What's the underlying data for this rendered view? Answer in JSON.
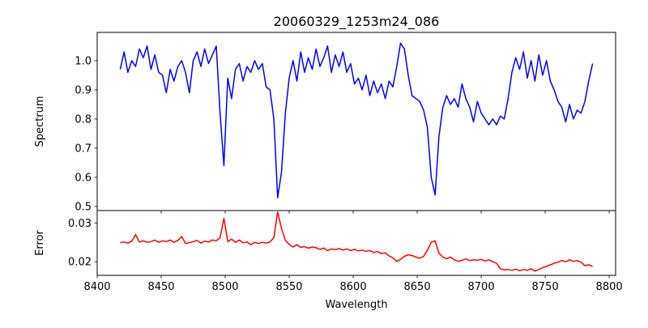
{
  "chart_data": [
    {
      "type": "line",
      "title": "20060329_1253m24_086",
      "xlabel": "",
      "ylabel": "Spectrum",
      "xlim": [
        8400,
        8805
      ],
      "ylim": [
        0.486,
        1.097
      ],
      "yticks": [
        0.5,
        0.6,
        0.7,
        0.8,
        0.9,
        1.0
      ],
      "ytick_labels": [
        "0.5",
        "0.6",
        "0.7",
        "0.8",
        "0.9",
        "1.0"
      ],
      "grid": false,
      "color": "#0000ff",
      "x_start": 8418,
      "x_step": 3,
      "values": [
        0.97,
        1.03,
        0.96,
        1.0,
        0.98,
        1.04,
        1.01,
        1.05,
        0.97,
        1.02,
        0.96,
        0.95,
        0.89,
        0.97,
        0.93,
        0.98,
        1.0,
        0.96,
        0.89,
        1.0,
        1.03,
        0.98,
        1.04,
        0.99,
        1.02,
        1.05,
        0.82,
        0.64,
        0.94,
        0.87,
        0.97,
        0.99,
        0.93,
        0.98,
        0.96,
        1.0,
        0.97,
        0.99,
        0.91,
        0.9,
        0.8,
        0.53,
        0.62,
        0.82,
        0.94,
        1.0,
        0.93,
        1.03,
        0.96,
        1.01,
        0.97,
        1.04,
        0.98,
        1.01,
        1.05,
        0.96,
        1.02,
        0.98,
        1.03,
        0.96,
        0.99,
        0.92,
        0.94,
        0.9,
        0.95,
        0.88,
        0.93,
        0.89,
        0.92,
        0.87,
        0.93,
        0.91,
        0.98,
        1.06,
        1.04,
        0.95,
        0.88,
        0.87,
        0.86,
        0.83,
        0.77,
        0.6,
        0.54,
        0.74,
        0.84,
        0.88,
        0.85,
        0.87,
        0.84,
        0.92,
        0.87,
        0.84,
        0.79,
        0.86,
        0.82,
        0.8,
        0.78,
        0.8,
        0.78,
        0.81,
        0.8,
        0.87,
        0.96,
        1.01,
        0.97,
        1.03,
        0.94,
        1.0,
        0.93,
        1.02,
        0.95,
        1.0,
        0.93,
        0.9,
        0.86,
        0.84,
        0.79,
        0.85,
        0.8,
        0.83,
        0.82,
        0.86,
        0.93,
        0.99
      ]
    },
    {
      "type": "line",
      "xlabel": "Wavelength",
      "ylabel": "Error",
      "xlim": [
        8400,
        8805
      ],
      "ylim": [
        0.01649,
        0.03319
      ],
      "xticks": [
        8400,
        8450,
        8500,
        8550,
        8600,
        8650,
        8700,
        8750,
        8800
      ],
      "xtick_labels": [
        "8400",
        "8450",
        "8500",
        "8550",
        "8600",
        "8650",
        "8700",
        "8750",
        "8800"
      ],
      "yticks": [
        0.02,
        0.03
      ],
      "ytick_labels": [
        "0.02",
        "0.03"
      ],
      "grid": false,
      "color": "#ff0000",
      "x_start": 8418,
      "x_step": 3,
      "values": [
        0.0249,
        0.0251,
        0.0248,
        0.0253,
        0.027,
        0.0251,
        0.0254,
        0.025,
        0.0252,
        0.0256,
        0.025,
        0.0254,
        0.0252,
        0.0256,
        0.025,
        0.0255,
        0.0265,
        0.0247,
        0.0249,
        0.0252,
        0.0255,
        0.0248,
        0.0253,
        0.0251,
        0.0256,
        0.0254,
        0.0262,
        0.0312,
        0.0252,
        0.0258,
        0.025,
        0.0256,
        0.0249,
        0.0251,
        0.0244,
        0.025,
        0.0247,
        0.025,
        0.0248,
        0.0251,
        0.0262,
        0.0328,
        0.0285,
        0.0255,
        0.0245,
        0.0238,
        0.0244,
        0.0237,
        0.0239,
        0.0235,
        0.0238,
        0.0236,
        0.0232,
        0.0235,
        0.0229,
        0.0233,
        0.0231,
        0.0234,
        0.023,
        0.0233,
        0.0229,
        0.0232,
        0.0228,
        0.023,
        0.0227,
        0.0229,
        0.0224,
        0.0226,
        0.0221,
        0.0223,
        0.0215,
        0.021,
        0.0201,
        0.0206,
        0.0214,
        0.0218,
        0.0216,
        0.0212,
        0.0209,
        0.0214,
        0.023,
        0.025,
        0.0254,
        0.0222,
        0.0212,
        0.0208,
        0.0212,
        0.0205,
        0.0201,
        0.0204,
        0.0207,
        0.0203,
        0.0205,
        0.0204,
        0.0206,
        0.0202,
        0.0205,
        0.02,
        0.0196,
        0.0182,
        0.0179,
        0.018,
        0.0178,
        0.0181,
        0.0177,
        0.018,
        0.0178,
        0.0182,
        0.0176,
        0.018,
        0.0185,
        0.0188,
        0.0192,
        0.0196,
        0.0199,
        0.0203,
        0.02,
        0.0205,
        0.0201,
        0.0203,
        0.0199,
        0.019,
        0.0192,
        0.0188
      ]
    }
  ]
}
